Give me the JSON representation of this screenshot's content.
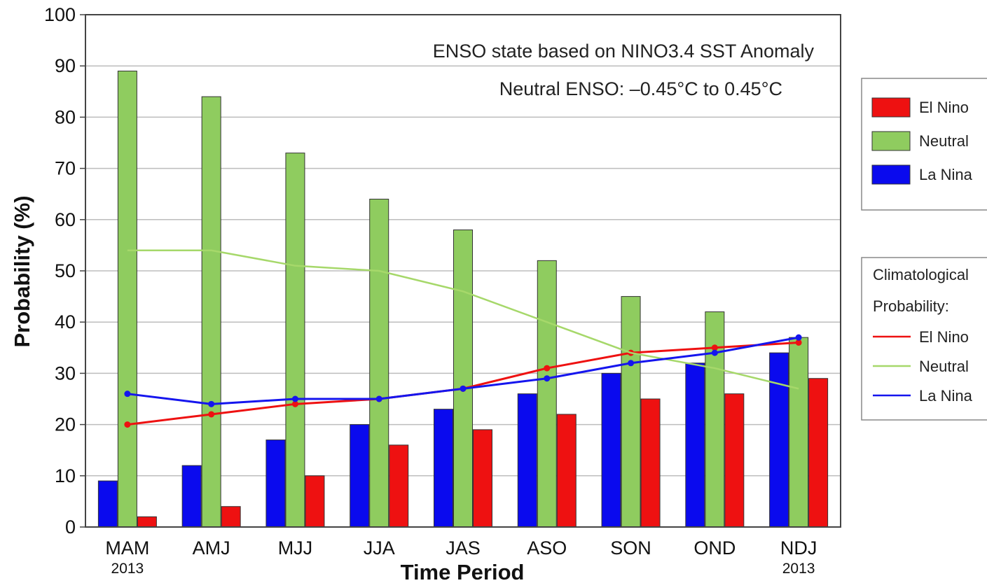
{
  "chart_data": {
    "type": "bar",
    "title": "",
    "xlabel": "Time Period",
    "ylabel": "Probability (%)",
    "ylim": [
      0,
      100
    ],
    "yticks": [
      0,
      10,
      20,
      30,
      40,
      50,
      60,
      70,
      80,
      90,
      100
    ],
    "grid": true,
    "categories": [
      "MAM",
      "AMJ",
      "MJJ",
      "JJA",
      "JAS",
      "ASO",
      "SON",
      "OND",
      "NDJ"
    ],
    "year_labels": [
      {
        "category": "MAM",
        "text": "2013"
      },
      {
        "category": "NDJ",
        "text": "2013"
      }
    ],
    "annotations": [
      "ENSO state based on NINO3.4 SST Anomaly",
      "Neutral ENSO: –0.45°C to 0.45°C"
    ],
    "series": [
      {
        "name": "La Nina",
        "kind": "bar",
        "color": "#0a0aee",
        "values": [
          9,
          12,
          17,
          20,
          23,
          26,
          30,
          32,
          34
        ]
      },
      {
        "name": "Neutral",
        "kind": "bar",
        "color": "#8fcc5f",
        "values": [
          89,
          84,
          73,
          64,
          58,
          52,
          45,
          42,
          37
        ]
      },
      {
        "name": "El Nino",
        "kind": "bar",
        "color": "#ee1111",
        "values": [
          2,
          4,
          10,
          16,
          19,
          22,
          25,
          26,
          29
        ]
      }
    ],
    "climatology": [
      {
        "name": "El Nino",
        "color": "#ee1111",
        "markers": true,
        "values": [
          20,
          22,
          24,
          25,
          27,
          31,
          34,
          35,
          36
        ]
      },
      {
        "name": "Neutral",
        "color": "#a6d86a",
        "markers": false,
        "values": [
          54,
          54,
          51,
          50,
          46,
          40,
          34,
          31,
          27
        ]
      },
      {
        "name": "La Nina",
        "color": "#1515ee",
        "markers": true,
        "values": [
          26,
          24,
          25,
          25,
          27,
          29,
          32,
          34,
          37
        ]
      }
    ],
    "legend": {
      "placement": "right",
      "bars_box": [
        "El Nino",
        "Neutral",
        "La Nina"
      ],
      "climatology_box": {
        "title_lines": [
          "Climatological",
          "Probability:"
        ],
        "items": [
          "El Nino",
          "Neutral",
          "La Nina"
        ]
      }
    }
  }
}
